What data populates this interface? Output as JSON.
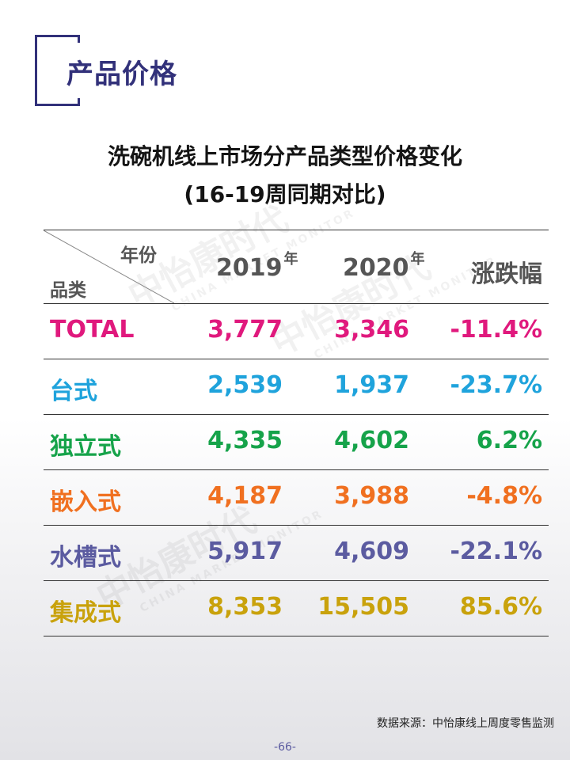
{
  "page_title": "产品价格",
  "chart_title_line1": "洗碗机线上市场分产品类型价格变化",
  "chart_title_line2": "(16-19周同期对比)",
  "watermark": {
    "brand": "中怡康时代",
    "sub": "CHINA MARKET MONITOR"
  },
  "table": {
    "header": {
      "year_label": "年份",
      "category_label": "品类",
      "col_2019": "2019",
      "col_2020": "2020",
      "year_suffix": "年",
      "col_change": "涨跌幅"
    },
    "rows": [
      {
        "category": "TOTAL",
        "v2019": "3,777",
        "v2020": "3,346",
        "change": "-11.4%",
        "color": "#e0197d"
      },
      {
        "category": "台式",
        "v2019": "2,539",
        "v2020": "1,937",
        "change": "-23.7%",
        "color": "#1fa3dc"
      },
      {
        "category": "独立式",
        "v2019": "4,335",
        "v2020": "4,602",
        "change": "6.2%",
        "color": "#16a34a"
      },
      {
        "category": "嵌入式",
        "v2019": "4,187",
        "v2020": "3,988",
        "change": "-4.8%",
        "color": "#f07020"
      },
      {
        "category": "水槽式",
        "v2019": "5,917",
        "v2020": "4,609",
        "change": "-22.1%",
        "color": "#5b5ba0"
      },
      {
        "category": "集成式",
        "v2019": "8,353",
        "v2020": "15,505",
        "change": "85.6%",
        "color": "#c9a20c"
      }
    ]
  },
  "source": "数据来源：中怡康线上周度零售监测",
  "page_number": "-66-",
  "colors": {
    "accent": "#32317a"
  }
}
